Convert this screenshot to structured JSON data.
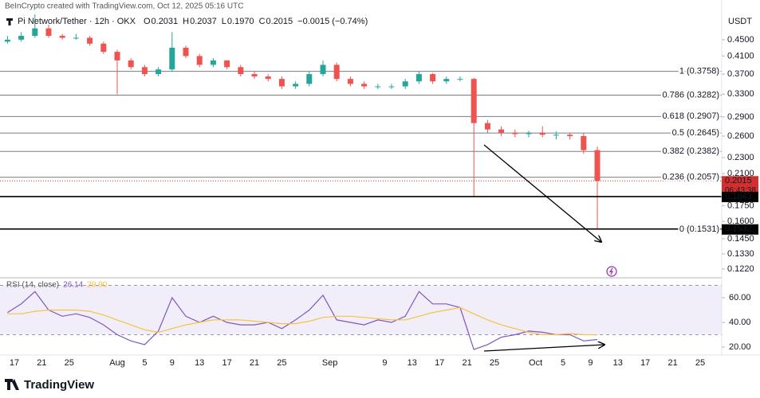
{
  "chart_data": {
    "type": "candlestick",
    "header": "BeInCrypto created with TradingView.com, Oct 12, 2025 05:16 UTC",
    "symbol": "Pi Network/Tether · 12h · OKX",
    "legend": [
      {
        "key": "O",
        "value": "0.2031"
      },
      {
        "key": "H",
        "value": "0.2037"
      },
      {
        "key": "L",
        "value": "0.1970"
      },
      {
        "key": "C",
        "value": "0.2015"
      }
    ],
    "change": "−0.0015 (−0.74%)",
    "currency": "USDT",
    "footer": "TradingView",
    "log_scale": true,
    "up_color": "#26a69a",
    "down_color": "#ef5350",
    "x": [
      "07-16",
      "07-18",
      "07-20",
      "07-22",
      "07-24",
      "07-26",
      "07-28",
      "07-30",
      "08-01",
      "08-03",
      "08-05",
      "08-07",
      "08-09",
      "08-11",
      "08-13",
      "08-15",
      "08-17",
      "08-19",
      "08-21",
      "08-23",
      "08-25",
      "08-27",
      "08-29",
      "08-31",
      "09-02",
      "09-04",
      "09-06",
      "09-08",
      "09-10",
      "09-12",
      "09-14",
      "09-16",
      "09-18",
      "09-20",
      "09-22",
      "09-24",
      "09-26",
      "09-28",
      "09-30",
      "10-02",
      "10-04",
      "10-06",
      "10-08",
      "10-10"
    ],
    "open": [
      0.445,
      0.45,
      0.46,
      0.48,
      0.46,
      0.455,
      0.455,
      0.44,
      0.42,
      0.4,
      0.385,
      0.37,
      0.38,
      0.43,
      0.41,
      0.39,
      0.4,
      0.385,
      0.37,
      0.365,
      0.36,
      0.345,
      0.35,
      0.37,
      0.39,
      0.36,
      0.35,
      0.345,
      0.345,
      0.345,
      0.355,
      0.37,
      0.355,
      0.36,
      0.36,
      0.28,
      0.27,
      0.265,
      0.263,
      0.265,
      0.262,
      0.262,
      0.26,
      0.24
    ],
    "high": [
      0.46,
      0.47,
      0.52,
      0.49,
      0.465,
      0.465,
      0.46,
      0.445,
      0.425,
      0.405,
      0.39,
      0.385,
      0.47,
      0.435,
      0.415,
      0.405,
      0.4,
      0.39,
      0.375,
      0.37,
      0.365,
      0.355,
      0.375,
      0.4,
      0.395,
      0.365,
      0.355,
      0.35,
      0.35,
      0.36,
      0.375,
      0.372,
      0.365,
      0.365,
      0.362,
      0.285,
      0.275,
      0.27,
      0.268,
      0.275,
      0.267,
      0.265,
      0.265,
      0.245
    ],
    "low": [
      0.44,
      0.445,
      0.455,
      0.455,
      0.45,
      0.45,
      0.435,
      0.415,
      0.33,
      0.38,
      0.365,
      0.365,
      0.375,
      0.405,
      0.385,
      0.385,
      0.38,
      0.365,
      0.36,
      0.355,
      0.34,
      0.34,
      0.345,
      0.365,
      0.355,
      0.345,
      0.34,
      0.34,
      0.34,
      0.34,
      0.35,
      0.35,
      0.35,
      0.355,
      0.185,
      0.265,
      0.26,
      0.258,
      0.258,
      0.258,
      0.255,
      0.255,
      0.235,
      0.153
    ],
    "close": [
      0.45,
      0.46,
      0.48,
      0.46,
      0.455,
      0.455,
      0.44,
      0.42,
      0.4,
      0.385,
      0.37,
      0.38,
      0.43,
      0.41,
      0.39,
      0.4,
      0.385,
      0.37,
      0.365,
      0.36,
      0.345,
      0.35,
      0.37,
      0.39,
      0.36,
      0.35,
      0.345,
      0.345,
      0.345,
      0.355,
      0.37,
      0.355,
      0.36,
      0.36,
      0.28,
      0.27,
      0.265,
      0.263,
      0.265,
      0.262,
      0.262,
      0.26,
      0.24,
      0.2015
    ],
    "ylim": [
      0.1166,
      0.544
    ],
    "yticks": [
      {
        "value": 0.45,
        "label": "0.4500"
      },
      {
        "value": 0.41,
        "label": "0.4100"
      },
      {
        "value": 0.37,
        "label": "0.3700"
      },
      {
        "value": 0.33,
        "label": "0.3300"
      },
      {
        "value": 0.29,
        "label": "0.2900"
      },
      {
        "value": 0.26,
        "label": "0.2600"
      },
      {
        "value": 0.23,
        "label": "0.2300"
      },
      {
        "value": 0.21,
        "label": "0.2100"
      },
      {
        "value": 0.175,
        "label": "0.1750"
      },
      {
        "value": 0.16,
        "label": "0.1600"
      },
      {
        "value": 0.145,
        "label": "0.1450"
      },
      {
        "value": 0.133,
        "label": "0.1330"
      },
      {
        "value": 0.122,
        "label": "0.1220"
      }
    ],
    "fib_levels": [
      {
        "value": 0.3758,
        "label": "1 (0.3758)"
      },
      {
        "value": 0.3282,
        "label": "0.786 (0.3282)"
      },
      {
        "value": 0.2907,
        "label": "0.618 (0.2907)"
      },
      {
        "value": 0.2645,
        "label": "0.5 (0.2645)"
      },
      {
        "value": 0.2382,
        "label": "0.382 (0.2382)"
      },
      {
        "value": 0.2057,
        "label": "0.236 (0.2057)"
      },
      {
        "value": 0.1531,
        "label": "0 (0.1531)"
      }
    ],
    "price_tags": [
      {
        "value": 0.2015,
        "countdown": "06:43:38",
        "color": "#d32f2f"
      },
      {
        "value": 0.1843,
        "color": "#000000"
      },
      {
        "value": 0.1532,
        "color": "#000000"
      }
    ],
    "xticks": [
      {
        "value": "07-17",
        "label": "17"
      },
      {
        "value": "07-21",
        "label": "21"
      },
      {
        "value": "07-25",
        "label": "25"
      },
      {
        "value": "08-01",
        "label": "Aug"
      },
      {
        "value": "08-05",
        "label": "5"
      },
      {
        "value": "08-09",
        "label": "9"
      },
      {
        "value": "08-13",
        "label": "13"
      },
      {
        "value": "08-17",
        "label": "17"
      },
      {
        "value": "08-21",
        "label": "21"
      },
      {
        "value": "08-25",
        "label": "25"
      },
      {
        "value": "09-01",
        "label": "Sep"
      },
      {
        "value": "09-09",
        "label": "9"
      },
      {
        "value": "09-13",
        "label": "13"
      },
      {
        "value": "09-17",
        "label": "17"
      },
      {
        "value": "09-21",
        "label": "21"
      },
      {
        "value": "09-25",
        "label": "25"
      },
      {
        "value": "10-01",
        "label": "Oct"
      },
      {
        "value": "10-05",
        "label": "5"
      },
      {
        "value": "10-09",
        "label": "9"
      },
      {
        "value": "10-13",
        "label": "13"
      },
      {
        "value": "10-17",
        "label": "17"
      },
      {
        "value": "10-21",
        "label": "21"
      },
      {
        "value": "10-25",
        "label": "25"
      }
    ],
    "rsi": {
      "title": "RSI (14, close)",
      "legend_values": [
        "26.14",
        "29.90"
      ],
      "ylim": [
        14.2,
        74.2
      ],
      "yticks": [
        {
          "value": 60,
          "label": "60.00"
        },
        {
          "value": 40,
          "label": "40.00"
        },
        {
          "value": 20,
          "label": "20.00"
        }
      ],
      "band": [
        30,
        70
      ],
      "series": [
        {
          "color": "#7e57c2",
          "values": [
            48,
            55,
            65,
            50,
            45,
            47,
            44,
            38,
            30,
            25,
            22,
            33,
            60,
            45,
            40,
            45,
            40,
            38,
            38,
            40,
            35,
            42,
            50,
            62,
            42,
            40,
            38,
            42,
            40,
            45,
            65,
            55,
            55,
            52,
            18,
            22,
            28,
            30,
            33,
            32,
            30,
            30,
            25,
            26.14
          ]
        },
        {
          "color": "#f5c242",
          "values": [
            47,
            47,
            49,
            50,
            50,
            50,
            49,
            46,
            42,
            38,
            34,
            32,
            35,
            38,
            40,
            42,
            42,
            42,
            41,
            40,
            39,
            39,
            41,
            44,
            45,
            45,
            44,
            43,
            42,
            42,
            45,
            48,
            50,
            52,
            47,
            42,
            38,
            35,
            32,
            30,
            30,
            31,
            30,
            29.9
          ]
        }
      ]
    }
  }
}
